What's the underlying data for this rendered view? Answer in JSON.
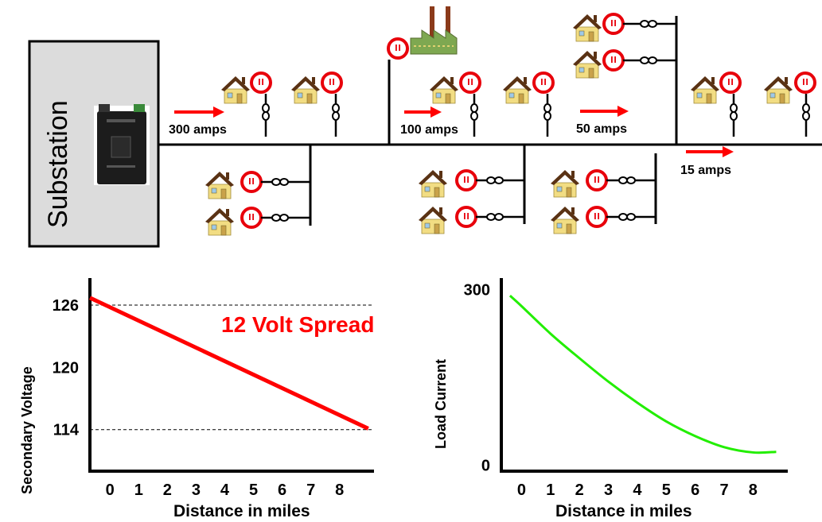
{
  "substation": {
    "label": "Substation"
  },
  "flow_labels": [
    "300 amps",
    "100 amps",
    "50 amps",
    "15 amps"
  ],
  "meter_text": "||",
  "colors": {
    "line": "#000000",
    "arrow": "#ff0000",
    "meter_ring": "#e8000b",
    "house_wall": "#f2dd83",
    "house_roof": "#5a3214",
    "voltage_line": "#ff0000",
    "current_line": "#22ee00",
    "substation_fill": "#dcdcdc"
  },
  "chart_data": [
    {
      "type": "line",
      "title": "",
      "annotation": "12 Volt Spread",
      "xlabel": "Distance in miles",
      "ylabel": "Secondary Voltage",
      "x_ticks": [
        "0",
        "1",
        "2",
        "3",
        "4",
        "5",
        "6",
        "7",
        "8"
      ],
      "y_ticks": [
        126,
        120,
        114
      ],
      "reference_lines": [
        126,
        114
      ],
      "xlim": [
        -0.7,
        9.2
      ],
      "ylim": [
        110,
        128.6
      ],
      "series": [
        {
          "x": [
            -0.7,
            9.0
          ],
          "y": [
            126.7,
            114.1
          ]
        }
      ],
      "grid": false
    },
    {
      "type": "line",
      "title": "",
      "xlabel": "Distance in miles",
      "ylabel": "Load Current",
      "x_ticks": [
        "0",
        "1",
        "2",
        "3",
        "4",
        "5",
        "6",
        "7",
        "8"
      ],
      "y_ticks": [
        300,
        0
      ],
      "xlim": [
        -0.7,
        9.2
      ],
      "ylim": [
        -10,
        320
      ],
      "series": [
        {
          "x": [
            -0.4,
            0,
            1,
            2,
            3,
            4,
            5,
            6,
            7,
            8,
            8.8
          ],
          "y": [
            290,
            272,
            225,
            183,
            143,
            107,
            75,
            50,
            31,
            22,
            23
          ]
        }
      ],
      "grid": false
    }
  ]
}
